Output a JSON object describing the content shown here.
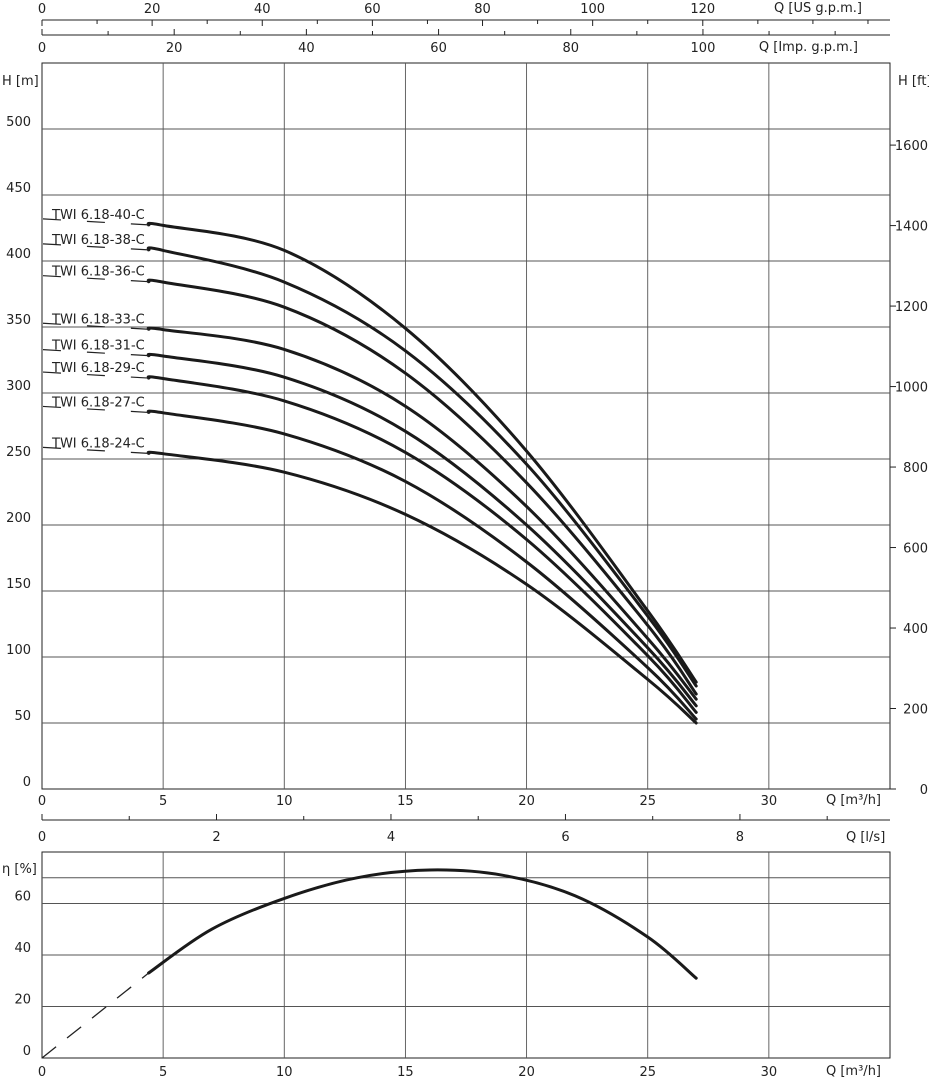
{
  "chart_data": [
    {
      "type": "line",
      "name": "head",
      "axes": {
        "x": {
          "label": "Q [m³/h]",
          "range": [
            0,
            35
          ],
          "ticks": [
            0,
            5,
            10,
            15,
            20,
            25,
            30
          ]
        },
        "y_left": {
          "label": "H [m]",
          "range": [
            0,
            550
          ],
          "ticks": [
            0,
            50,
            100,
            150,
            200,
            250,
            300,
            350,
            400,
            450,
            500
          ]
        },
        "y_right": {
          "label": "H [ft]",
          "range": [
            0,
            1804
          ],
          "ticks": [
            0,
            200,
            400,
            600,
            800,
            1000,
            1200,
            1400,
            1600
          ]
        },
        "x_top_us": {
          "label": "Q [US g.p.m.]",
          "range": [
            0,
            154
          ],
          "ticks": [
            0,
            20,
            40,
            60,
            80,
            100,
            120
          ]
        },
        "x_top_imp": {
          "label": "Q [Imp. g.p.m.]",
          "range": [
            0,
            128.3
          ],
          "ticks": [
            0,
            20,
            40,
            60,
            80,
            100
          ]
        }
      },
      "grid": true,
      "series": [
        {
          "name": "TWI 6.18-40-C",
          "x": [
            5,
            10,
            15,
            20,
            25,
            27
          ],
          "y": [
            427,
            408,
            349,
            256,
            135,
            81
          ]
        },
        {
          "name": "TWI 6.18-38-C",
          "x": [
            5,
            10,
            15,
            20,
            25,
            27
          ],
          "y": [
            408,
            384,
            332,
            246,
            131,
            78
          ]
        },
        {
          "name": "TWI 6.18-36-C",
          "x": [
            5,
            10,
            15,
            20,
            25,
            27
          ],
          "y": [
            384,
            365,
            315,
            232,
            124,
            72
          ]
        },
        {
          "name": "TWI 6.18-33-C",
          "x": [
            5,
            10,
            15,
            20,
            25,
            27
          ],
          "y": [
            348,
            333,
            290,
            214,
            114,
            68
          ]
        },
        {
          "name": "TWI 6.18-31-C",
          "x": [
            5,
            10,
            15,
            20,
            25,
            27
          ],
          "y": [
            328,
            312,
            271,
            200,
            107,
            63
          ]
        },
        {
          "name": "TWI 6.18-29-C",
          "x": [
            5,
            10,
            15,
            20,
            25,
            27
          ],
          "y": [
            311,
            294,
            255,
            189,
            101,
            58
          ]
        },
        {
          "name": "TWI 6.18-27-C",
          "x": [
            5,
            10,
            15,
            20,
            25,
            27
          ],
          "y": [
            285,
            269,
            233,
            172,
            92,
            53
          ]
        },
        {
          "name": "TWI 6.18-24-C",
          "x": [
            5,
            10,
            15,
            20,
            25,
            27
          ],
          "y": [
            254,
            240,
            208,
            155,
            83,
            50
          ]
        }
      ],
      "dashed_extension_from_x": 0,
      "curve_start_x": 4.4,
      "curve_end_x": 27
    },
    {
      "type": "line",
      "name": "efficiency",
      "axes": {
        "x": {
          "label": "Q [m³/h]",
          "range": [
            0,
            35
          ],
          "ticks": [
            0,
            5,
            10,
            15,
            20,
            25,
            30
          ]
        },
        "x_top_ls": {
          "label": "Q [l/s]",
          "range": [
            0,
            9.72
          ],
          "ticks": [
            0,
            2,
            4,
            6,
            8
          ]
        },
        "y": {
          "label": "η [%]",
          "range": [
            0,
            80
          ],
          "ticks": [
            0,
            20,
            40,
            60
          ]
        }
      },
      "grid": true,
      "series": [
        {
          "name": "",
          "x": [
            4.4,
            7,
            10,
            13,
            16,
            19,
            22,
            25,
            27
          ],
          "y": [
            33,
            50,
            62,
            70,
            73,
            71,
            63,
            47,
            31
          ]
        }
      ],
      "dashed_segment": {
        "x": [
          0,
          4.4
        ],
        "y": [
          0,
          33
        ]
      }
    }
  ]
}
